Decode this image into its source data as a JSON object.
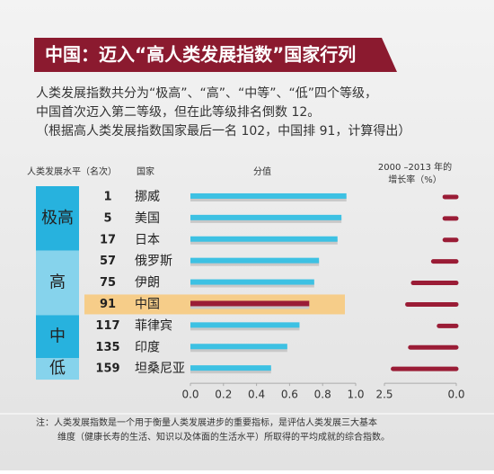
{
  "chart_data": {
    "type": "bar",
    "title": "中国：迈入“高人类发展指数”国家行列",
    "description": [
      "人类发展指数共分为“极高”、“高”、“中等”、“低”四个等级，",
      "中国首次迈入第二等级，但在此等级排名倒数 12。",
      "（根据高人类发展指数国家最后一名 102，中国排 91，计算得出）"
    ],
    "headers": {
      "level": "人类发展水平（名次）",
      "country": "国家",
      "value": "分值",
      "growth": [
        "2000 –2013 年的",
        "增长率（%）"
      ]
    },
    "groups": [
      {
        "level": "极高",
        "color": "#27b2de",
        "rows": [
          {
            "rank": 1,
            "country": "挪威",
            "value": 0.944,
            "growth": 0.4,
            "color": "#3dc1e3"
          },
          {
            "rank": 5,
            "country": "美国",
            "value": 0.914,
            "growth": 0.4,
            "color": "#3dc1e3"
          },
          {
            "rank": 17,
            "country": "日本",
            "value": 0.89,
            "growth": 0.4,
            "color": "#3dc1e3"
          }
        ]
      },
      {
        "level": "高",
        "color": "#86d3ec",
        "rows": [
          {
            "rank": 57,
            "country": "俄罗斯",
            "value": 0.778,
            "growth": 0.8,
            "color": "#3dc1e3"
          },
          {
            "rank": 75,
            "country": "伊朗",
            "value": 0.749,
            "growth": 1.5,
            "color": "#3dc1e3"
          },
          {
            "rank": 91,
            "country": "中国",
            "value": 0.719,
            "growth": 1.7,
            "color": "#9a1c36",
            "highlight": "#f8c878"
          }
        ]
      },
      {
        "level": "中",
        "color": "#27b2de",
        "rows": [
          {
            "rank": 117,
            "country": "菲律宾",
            "value": 0.66,
            "growth": 0.6,
            "color": "#3dc1e3"
          },
          {
            "rank": 135,
            "country": "印度",
            "value": 0.586,
            "growth": 1.6,
            "color": "#3dc1e3"
          }
        ]
      },
      {
        "level": "低",
        "color": "#86d3ec",
        "rows": [
          {
            "rank": 159,
            "country": "坦桑尼亚",
            "value": 0.488,
            "growth": 2.2,
            "color": "#3dc1e3"
          }
        ]
      }
    ],
    "growth_color": "#9a1c36",
    "xlim": [
      0,
      1
    ],
    "xticks": [
      {
        "value": 0,
        "label": "0.0"
      },
      0.2,
      0.4,
      0.6,
      0.8,
      {
        "value": 1,
        "label": "1.0"
      }
    ],
    "x2lim": [
      2.5,
      0
    ],
    "x2ticks": [
      2.5,
      {
        "value": 0,
        "label": "0.0"
      }
    ],
    "note": [
      "注：人类发展指数是一个用于衡量人类发展进步的重要指标，是评估人类发展三大基本",
      "维度（健康长寿的生活、知识以及体面的生活水平）所取得的平均成就的综合指数。"
    ]
  }
}
